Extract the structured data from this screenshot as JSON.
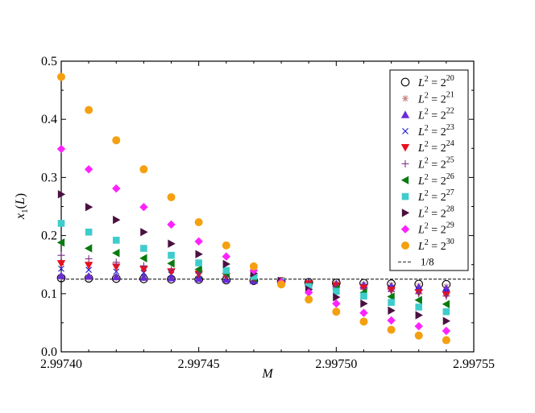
{
  "chart_data": {
    "type": "scatter",
    "xlabel": "M",
    "ylabel": "x1(L)",
    "xlim": [
      2.9974,
      2.99755
    ],
    "ylim": [
      0.0,
      0.5
    ],
    "xticks": [
      "2.99740",
      "2.99745",
      "2.99750",
      "2.99755"
    ],
    "yticks": [
      "0.0",
      "0.1",
      "0.2",
      "0.3",
      "0.4",
      "0.5"
    ],
    "x": [
      2.9974,
      2.99741,
      2.99742,
      2.99743,
      2.99744,
      2.99745,
      2.99746,
      2.99747,
      2.99748,
      2.99749,
      2.9975,
      2.99751,
      2.99752,
      2.99753,
      2.99754
    ],
    "legend_position": "top-right",
    "series": [
      {
        "name": "L2=2^20",
        "label_exp": "20",
        "marker": "circle-open",
        "color": "#000000",
        "values": [
          0.127,
          0.1265,
          0.126,
          0.1255,
          0.125,
          0.1245,
          0.1235,
          0.1225,
          0.121,
          0.1195,
          0.1185,
          0.118,
          0.117,
          0.1165,
          0.116
        ]
      },
      {
        "name": "L2=2^21",
        "label_exp": "21",
        "marker": "asterisk",
        "color": "#c08080",
        "values": [
          0.129,
          0.128,
          0.1275,
          0.127,
          0.1265,
          0.126,
          0.1245,
          0.1225,
          0.121,
          0.1195,
          0.1175,
          0.116,
          0.115,
          0.1135,
          0.112
        ]
      },
      {
        "name": "L2=2^22",
        "label_exp": "22",
        "marker": "triangle-up",
        "color": "#6a2bd8",
        "values": [
          0.131,
          0.13,
          0.129,
          0.128,
          0.127,
          0.126,
          0.1245,
          0.1225,
          0.121,
          0.119,
          0.117,
          0.115,
          0.113,
          0.111,
          0.109
        ]
      },
      {
        "name": "L2=2^23",
        "label_exp": "23",
        "marker": "x",
        "color": "#1a1ad0",
        "values": [
          0.143,
          0.141,
          0.138,
          0.136,
          0.133,
          0.131,
          0.128,
          0.125,
          0.121,
          0.118,
          0.115,
          0.112,
          0.109,
          0.106,
          0.103
        ]
      },
      {
        "name": "L2=2^24",
        "label_exp": "24",
        "marker": "triangle-down",
        "color": "#e8101c",
        "values": [
          0.152,
          0.149,
          0.146,
          0.142,
          0.138,
          0.134,
          0.13,
          0.126,
          0.122,
          0.117,
          0.114,
          0.11,
          0.106,
          0.102,
          0.098
        ]
      },
      {
        "name": "L2=2^25",
        "label_exp": "25",
        "marker": "plus",
        "color": "#7a2e86",
        "values": [
          0.166,
          0.16,
          0.154,
          0.148,
          0.141,
          0.136,
          0.13,
          0.125,
          0.121,
          0.115,
          0.112,
          0.108,
          0.104,
          0.1,
          0.096
        ]
      },
      {
        "name": "L2=2^26",
        "label_exp": "26",
        "marker": "triangle-left",
        "color": "#0a7a10",
        "values": [
          0.188,
          0.178,
          0.17,
          0.161,
          0.152,
          0.142,
          0.135,
          0.127,
          0.12,
          0.113,
          0.108,
          0.102,
          0.095,
          0.089,
          0.082
        ]
      },
      {
        "name": "L2=2^27",
        "label_exp": "27",
        "marker": "square",
        "color": "#3fcccc",
        "values": [
          0.221,
          0.206,
          0.192,
          0.178,
          0.166,
          0.153,
          0.14,
          0.13,
          0.121,
          0.112,
          0.104,
          0.096,
          0.085,
          0.077,
          0.069
        ]
      },
      {
        "name": "L2=2^28",
        "label_exp": "28",
        "marker": "triangle-right",
        "color": "#4a1040",
        "values": [
          0.271,
          0.249,
          0.227,
          0.206,
          0.186,
          0.168,
          0.151,
          0.135,
          0.122,
          0.107,
          0.094,
          0.083,
          0.071,
          0.063,
          0.053
        ]
      },
      {
        "name": "L2=2^29",
        "label_exp": "29",
        "marker": "diamond",
        "color": "#ff22ff",
        "values": [
          0.349,
          0.314,
          0.281,
          0.249,
          0.219,
          0.19,
          0.164,
          0.14,
          0.12,
          0.102,
          0.083,
          0.067,
          0.054,
          0.044,
          0.036
        ]
      },
      {
        "name": "L2=2^30",
        "label_exp": "30",
        "marker": "circle",
        "color": "#f5a010",
        "values": [
          0.473,
          0.416,
          0.364,
          0.314,
          0.266,
          0.223,
          0.183,
          0.147,
          0.116,
          0.09,
          0.069,
          0.052,
          0.038,
          0.028,
          0.02
        ]
      }
    ],
    "reference_line": {
      "label": "1/8",
      "value": 0.125,
      "style": "dashed"
    }
  }
}
